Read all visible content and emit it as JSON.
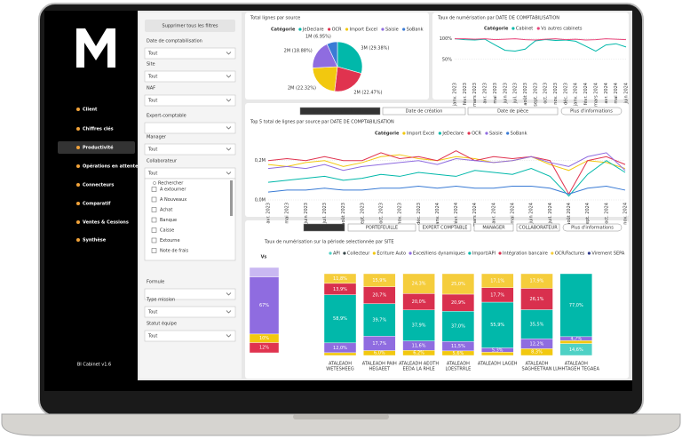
{
  "sidebar": {
    "menu": [
      "Client",
      "Chiffres clés",
      "Productivité",
      "Opérations en attente",
      "Connecteurs",
      "Comparatif",
      "Ventes & Cessions",
      "Synthèse"
    ],
    "active": 2,
    "footer": "BI Cabinet v1.6"
  },
  "filters": {
    "clear": "Supprimer tous les filtres",
    "fields": [
      {
        "label": "Date de comptabilisation",
        "value": "Tout"
      },
      {
        "label": "Site",
        "value": "Tout"
      },
      {
        "label": "NAF",
        "value": "Tout"
      },
      {
        "label": "Expert-comptable"
      },
      {
        "label": "Manager",
        "value": "Tout"
      },
      {
        "label": "Collaborateur",
        "value": "Tout"
      }
    ],
    "search": "Rechercher",
    "options": [
      "A extourner",
      "A Nouveaux",
      "Achat",
      "Banque",
      "Caisse",
      "Extourne",
      "Note de frais"
    ],
    "fields2": [
      {
        "label": "Formule"
      },
      {
        "label": "Type mission",
        "value": "Tout"
      },
      {
        "label": "Statut équipe",
        "value": "Tout"
      }
    ]
  },
  "pie": {
    "type": "pie",
    "title": "Total lignes par source",
    "legend_title": "Catégorie",
    "categories": [
      "JeDeclare",
      "OCR",
      "Import Excel",
      "Saisie",
      "SoBank"
    ],
    "values": [
      29.38,
      22.47,
      22.32,
      18.88,
      6.95
    ],
    "value_labels": [
      "3M (29.38%)",
      "2M (22.47%)",
      "2M (22.32%)",
      "2M (18.88%)",
      "1M (6.95%)"
    ],
    "colors": [
      "#01b8aa",
      "#e0334f",
      "#f2c80f",
      "#8f6ce0",
      "#3a7bd5"
    ]
  },
  "rate": {
    "type": "line",
    "title": "Taux de numérisation par DATE DE COMPTABILISATION",
    "legend_title": "Catégorie",
    "x": [
      "janv. 2023",
      "févr. 2023",
      "mars 2023",
      "avr. 2023",
      "mai 2023",
      "juin 2023",
      "juil. 2023",
      "août 2023",
      "sept. 2023",
      "oct. 2023",
      "nov. 2023",
      "déc. 2023",
      "janv. 2024",
      "févr. 2024",
      "mars 2024",
      "avr. 2024",
      "mai 2024",
      "juin 2024"
    ],
    "series": [
      {
        "name": "Cabinet",
        "color": "#01b8aa",
        "values": [
          100,
          98,
          97,
          99,
          85,
          72,
          70,
          75,
          95,
          98,
          96,
          97,
          94,
          82,
          70,
          85,
          88,
          80
        ]
      },
      {
        "name": "Vs autres cabinets",
        "color": "#e8457a",
        "values": [
          100,
          100,
          99,
          100,
          98,
          99,
          100,
          98,
          97,
          99,
          100,
          98,
          99,
          97,
          98,
          100,
          99,
          98
        ]
      }
    ],
    "ylim": [
      0,
      110
    ],
    "yticks": [
      {
        "value": 50,
        "label": "50%"
      },
      {
        "value": 100,
        "label": "100%"
      }
    ]
  },
  "lines": {
    "type": "line",
    "tabs": [
      "Date de comptabilisation",
      "Date de création",
      "Date de pièce",
      "Plus d'informations"
    ],
    "title": "Top 5 total de lignes par source par DATE DE COMPTABILISATION",
    "legend_title": "Catégorie",
    "x": [
      "avr. 2023",
      "mai 2023",
      "juin 2023",
      "juil. 2023",
      "août 2023",
      "sept. 2023",
      "oct. 2023",
      "nov. 2023",
      "déc. 2023",
      "janv. 2024",
      "févr. 2024",
      "mars 2024",
      "avr. 2024",
      "mai 2024",
      "juin 2024",
      "juil. 2024",
      "août 2024",
      "sept. 2024",
      "oct. 2024",
      "nov. 2024"
    ],
    "series": [
      {
        "name": "Import Excel",
        "color": "#f2c80f",
        "values": [
          0.18,
          0.17,
          0.19,
          0.2,
          0.17,
          0.19,
          0.22,
          0.23,
          0.21,
          0.2,
          0.22,
          0.21,
          0.19,
          0.2,
          0.22,
          0.18,
          0.15,
          0.2,
          0.19,
          0.16
        ]
      },
      {
        "name": "JeDeclare",
        "color": "#01b8aa",
        "values": [
          0.09,
          0.1,
          0.11,
          0.12,
          0.1,
          0.11,
          0.13,
          0.12,
          0.14,
          0.13,
          0.12,
          0.15,
          0.14,
          0.13,
          0.16,
          0.12,
          0.02,
          0.13,
          0.2,
          0.14
        ]
      },
      {
        "name": "OCR",
        "color": "#e0334f",
        "values": [
          0.2,
          0.21,
          0.2,
          0.22,
          0.2,
          0.2,
          0.24,
          0.21,
          0.22,
          0.2,
          0.25,
          0.2,
          0.22,
          0.21,
          0.22,
          0.2,
          0.03,
          0.2,
          0.22,
          0.18
        ]
      },
      {
        "name": "Saisie",
        "color": "#8f6ce0",
        "values": [
          0.16,
          0.17,
          0.16,
          0.18,
          0.15,
          0.17,
          0.18,
          0.19,
          0.2,
          0.18,
          0.21,
          0.2,
          0.19,
          0.2,
          0.22,
          0.19,
          0.17,
          0.22,
          0.24,
          0.15
        ]
      },
      {
        "name": "SoBank",
        "color": "#3a7bd5",
        "values": [
          0.04,
          0.05,
          0.05,
          0.06,
          0.05,
          0.05,
          0.06,
          0.06,
          0.07,
          0.06,
          0.07,
          0.06,
          0.06,
          0.07,
          0.07,
          0.06,
          0.03,
          0.06,
          0.07,
          0.05
        ]
      }
    ],
    "ylim": [
      0,
      0.28
    ],
    "yticks": [
      {
        "value": 0,
        "label": "0,0M"
      },
      {
        "value": 0.2,
        "label": "0,2M"
      }
    ]
  },
  "sites": {
    "type": "stacked-bar",
    "tabs": [
      "SITE",
      "PORTEFEUILLE",
      "EXPERT COMPTABLE",
      "MANAGER",
      "COLLABORATEUR",
      "Plus d'informations"
    ],
    "title": "Taux de numérisation sur la période selectionnée par SITE",
    "categories": [
      [
        "ATALEADH",
        "WETESHEEG"
      ],
      [
        "ATALEADH PAIH",
        "HEGAEET"
      ],
      [
        "ATALEADH AEOTH",
        "EEDA LA RHLE"
      ],
      [
        "ATALEADH",
        "LOESTRRLE"
      ],
      [
        "ATALEADH LAGEH"
      ],
      [
        "ATALEADH",
        "SAGHEETRAN"
      ],
      [
        "ATALEADH",
        "LUHHTAGEH TEGAEA"
      ]
    ],
    "ylim": [
      0,
      100
    ],
    "series": [
      {
        "name": "API",
        "color": "#4fd1c5",
        "values": [
          null,
          null,
          null,
          null,
          null,
          null,
          14.6
        ],
        "value_labels": [
          null,
          null,
          null,
          null,
          null,
          null,
          "14,6%"
        ]
      },
      {
        "name": "Collecteur",
        "color": "#374649",
        "values": [
          null,
          null,
          null,
          null,
          null,
          null,
          null
        ]
      },
      {
        "name": "Écriture Auto",
        "color": "#f2c80f",
        "values": [
          3.4,
          6.0,
          6.2,
          5.6,
          4.0,
          8.3,
          3.7
        ],
        "value_labels": [
          null,
          "6,0%",
          "6,2%",
          "5,6%",
          null,
          "8,3%",
          null
        ]
      },
      {
        "name": "Excel/liens dynamiques",
        "color": "#8f6ce0",
        "values": [
          12.0,
          17.7,
          11.6,
          11.5,
          5.3,
          12.2,
          4.7
        ],
        "value_labels": [
          "12,0%",
          "17,7%",
          "11,6%",
          "11,5%",
          "5,3%",
          "12,2%",
          "4,7%"
        ]
      },
      {
        "name": "Import/API",
        "color": "#01b8aa",
        "values": [
          58.9,
          39.7,
          37.9,
          37.0,
          55.9,
          35.5,
          77.0
        ],
        "value_labels": [
          "58,9%",
          "39,7%",
          "37,9%",
          "37,0%",
          "55,9%",
          "35,5%",
          "77,0%"
        ]
      },
      {
        "name": "Intégration bancaire",
        "color": "#d9304e",
        "values": [
          13.9,
          20.7,
          20.0,
          20.9,
          17.7,
          26.1,
          null
        ],
        "value_labels": [
          "13,9%",
          "20,7%",
          "20,0%",
          "20,9%",
          "17,7%",
          "26,1%",
          null
        ]
      },
      {
        "name": "OCR/Factures",
        "color": "#f5cd3c",
        "values": [
          11.8,
          15.9,
          24.3,
          25.0,
          17.1,
          17.9,
          null
        ],
        "value_labels": [
          "11,8%",
          "15,9%",
          "24,3%",
          "25,0%",
          "17,1%",
          "17,9%",
          null
        ]
      },
      {
        "name": "Virement SEPA",
        "color": "#2f3b8c",
        "values": [
          null,
          null,
          null,
          null,
          null,
          null,
          null
        ]
      }
    ],
    "vs": {
      "label": "Vs",
      "values": [
        12,
        10,
        67,
        11
      ],
      "value_labels": [
        "12%",
        "10%",
        "67%",
        null
      ],
      "colors": [
        "#e0334f",
        "#f2c80f",
        "#8f6ce0",
        "#c9b8f2"
      ]
    }
  }
}
